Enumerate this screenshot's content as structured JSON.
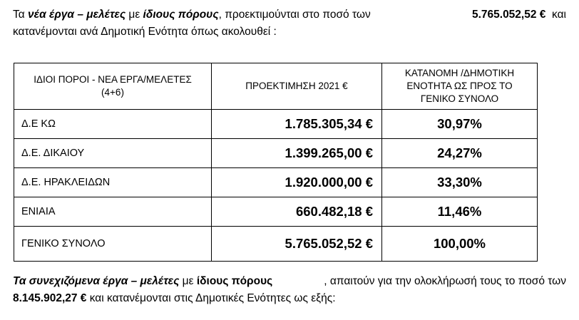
{
  "intro": {
    "t1": "Τα ",
    "t2": "νέα έργα – μελέτες",
    "t3": "  με ",
    "t4": "ίδιους πόρους",
    "t5": ", προεκτιμούνται στο ποσό των",
    "amount": "5.765.052,52 €",
    "t6": "και",
    "line2": "κατανέμονται ανά Δημοτική Ενότητα όπως ακολουθεί :"
  },
  "table": {
    "headers": {
      "col1_line1": "ΙΔΙΟΙ ΠΟΡΟΙ -  ΝΕΑ ΕΡΓΑ/ΜΕΛΕΤΕΣ",
      "col1_line2": "(4+6)",
      "col2": "ΠΡΟΕΚΤΙΜΗΣΗ 2021 €",
      "col3_line1": "ΚΑΤΑΝΟΜΗ /ΔΗΜΟΤΙΚΗ",
      "col3_line2": "ΕΝΟΤΗΤΑ ΩΣ ΠΡΟΣ ΤΟ",
      "col3_line3": "ΓΕΝΙΚΟ ΣΥΝΟΛΟ"
    },
    "rows": [
      {
        "name": "Δ.Ε ΚΩ",
        "amount": "1.785.305,34 €",
        "pct": "30,97%"
      },
      {
        "name": "Δ.Ε. ΔΙΚΑΙΟΥ",
        "amount": "1.399.265,00 €",
        "pct": "24,27%"
      },
      {
        "name": "Δ.Ε. ΗΡΑΚΛΕΙΔΩΝ",
        "amount": "1.920.000,00 €",
        "pct": "33,30%"
      },
      {
        "name": "ΕΝΙΑΙΑ",
        "amount": "660.482,18 €",
        "pct": "11,46%"
      },
      {
        "name": "ΓΕΝΙΚΟ ΣΥΝΟΛΟ",
        "amount": "5.765.052,52 €",
        "pct": "100,00%"
      }
    ]
  },
  "outro": {
    "t1": "Τα συνεχιζόμενα έργα – μελέτες",
    "t2": "  με ",
    "t3": "ίδιους πόρους",
    "t4": ", απαιτούν για την ολοκλήρωσή τους το ποσό των",
    "amount": "8.145.902,27 €",
    "t5": " και  κατανέμονται στις Δημοτικές Ενότητες ως εξής:"
  }
}
